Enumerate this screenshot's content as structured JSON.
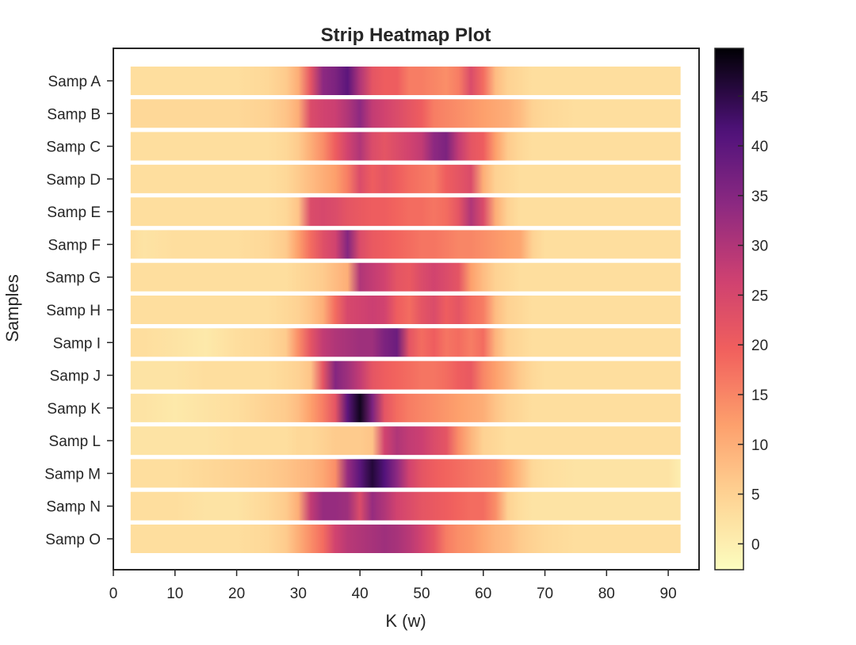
{
  "chart_data": {
    "type": "heatmap",
    "title": "Strip Heatmap Plot",
    "xlabel": "K (w)",
    "ylabel": "Samples",
    "xlim": [
      0,
      95
    ],
    "x_range": [
      2.8,
      92.0
    ],
    "xticks": [
      0,
      10,
      20,
      30,
      40,
      50,
      60,
      70,
      80,
      90
    ],
    "colorbar": {
      "colormap": "magma_r",
      "range": [
        -2.6,
        49.8
      ],
      "ticks": [
        0,
        5,
        10,
        15,
        20,
        25,
        30,
        35,
        40,
        45
      ]
    },
    "x_knots": [
      2.8,
      5,
      10,
      15,
      20,
      25,
      28,
      30,
      32,
      34,
      36,
      38,
      40,
      42,
      44,
      46,
      48,
      50,
      52,
      54,
      56,
      58,
      60,
      62,
      64,
      66,
      68,
      70,
      75,
      80,
      85,
      90,
      92
    ],
    "samples": [
      {
        "label": "Samp O",
        "values": [
          3,
          3,
          3,
          3,
          3,
          4,
          6,
          10,
          14,
          18,
          26,
          29,
          30,
          31,
          32,
          31,
          29,
          26,
          22,
          16,
          14,
          13,
          11,
          9,
          8,
          6,
          5,
          4,
          3,
          3,
          3,
          3,
          3
        ]
      },
      {
        "label": "Samp N",
        "values": [
          3,
          3,
          3,
          2,
          2,
          4,
          6,
          10,
          28,
          33,
          33,
          32,
          24,
          33,
          30,
          26,
          24,
          22,
          21,
          20,
          19,
          18,
          18,
          14,
          5,
          3,
          2,
          2,
          2,
          2,
          2,
          2,
          2
        ]
      },
      {
        "label": "Samp M",
        "values": [
          3,
          3,
          3,
          4,
          5,
          6,
          7,
          8,
          9,
          11,
          14,
          33,
          40,
          46,
          41,
          34,
          26,
          22,
          20,
          19,
          18,
          17,
          16,
          15,
          12,
          8,
          4,
          3,
          2,
          2,
          2,
          2,
          0
        ]
      },
      {
        "label": "Samp L",
        "values": [
          2,
          2,
          2,
          2,
          3,
          3,
          3,
          4,
          4,
          5,
          6,
          6,
          6,
          7,
          26,
          30,
          28,
          27,
          24,
          22,
          14,
          9,
          5,
          4,
          3,
          3,
          3,
          3,
          3,
          3,
          3,
          3,
          3
        ]
      },
      {
        "label": "Samp K",
        "values": [
          2,
          2,
          1,
          2,
          3,
          5,
          6,
          8,
          12,
          16,
          22,
          40,
          48,
          36,
          22,
          18,
          16,
          15,
          14,
          13,
          12,
          11,
          10,
          7,
          5,
          4,
          3,
          3,
          3,
          3,
          3,
          3,
          3
        ]
      },
      {
        "label": "Samp J",
        "values": [
          2,
          2,
          2,
          3,
          3,
          3,
          4,
          5,
          7,
          22,
          35,
          32,
          28,
          22,
          20,
          19,
          18,
          17,
          17,
          18,
          20,
          21,
          15,
          12,
          9,
          6,
          4,
          3,
          3,
          3,
          3,
          3,
          3
        ]
      },
      {
        "label": "Samp I",
        "values": [
          3,
          3,
          2,
          1,
          3,
          4,
          6,
          14,
          22,
          28,
          30,
          31,
          32,
          32,
          36,
          38,
          22,
          18,
          20,
          17,
          18,
          16,
          18,
          9,
          5,
          4,
          3,
          3,
          3,
          3,
          3,
          3,
          3
        ]
      },
      {
        "label": "Samp H",
        "values": [
          3,
          3,
          3,
          3,
          3,
          3,
          4,
          5,
          7,
          10,
          18,
          25,
          26,
          27,
          26,
          20,
          18,
          22,
          24,
          20,
          22,
          18,
          16,
          8,
          5,
          4,
          3,
          3,
          3,
          3,
          3,
          3,
          3
        ]
      },
      {
        "label": "Samp G",
        "values": [
          3,
          3,
          3,
          3,
          3,
          3,
          3,
          4,
          5,
          6,
          8,
          10,
          30,
          28,
          26,
          22,
          21,
          24,
          26,
          24,
          22,
          12,
          8,
          5,
          4,
          3,
          3,
          3,
          3,
          3,
          3,
          3,
          3
        ]
      },
      {
        "label": "Samp F",
        "values": [
          3,
          2,
          3,
          3,
          3,
          4,
          6,
          12,
          18,
          23,
          26,
          35,
          24,
          21,
          20,
          19,
          18,
          17,
          17,
          16,
          15,
          15,
          14,
          13,
          12,
          11,
          5,
          3,
          3,
          3,
          3,
          3,
          3
        ]
      },
      {
        "label": "Samp E",
        "values": [
          3,
          3,
          3,
          3,
          3,
          3,
          4,
          7,
          24,
          25,
          24,
          22,
          21,
          20,
          20,
          19,
          18,
          18,
          17,
          18,
          22,
          30,
          24,
          10,
          5,
          3,
          3,
          3,
          3,
          3,
          3,
          3,
          3
        ]
      },
      {
        "label": "Samp D",
        "values": [
          3,
          3,
          3,
          3,
          3,
          3,
          4,
          6,
          8,
          10,
          12,
          16,
          24,
          20,
          22,
          20,
          18,
          17,
          16,
          20,
          22,
          24,
          10,
          5,
          4,
          3,
          3,
          3,
          3,
          3,
          3,
          3,
          3
        ]
      },
      {
        "label": "Samp C",
        "values": [
          3,
          3,
          3,
          3,
          3,
          3,
          4,
          6,
          10,
          14,
          20,
          26,
          30,
          24,
          22,
          24,
          26,
          28,
          34,
          36,
          28,
          22,
          20,
          12,
          6,
          4,
          3,
          3,
          3,
          3,
          3,
          3,
          3
        ]
      },
      {
        "label": "Samp B",
        "values": [
          4,
          4,
          4,
          4,
          4,
          5,
          7,
          10,
          24,
          26,
          27,
          30,
          34,
          28,
          26,
          24,
          22,
          20,
          16,
          15,
          14,
          13,
          12,
          11,
          10,
          8,
          5,
          4,
          3,
          3,
          3,
          3,
          3
        ]
      },
      {
        "label": "Samp A",
        "values": [
          3,
          3,
          3,
          3,
          3,
          4,
          6,
          10,
          22,
          34,
          36,
          40,
          30,
          22,
          20,
          20,
          16,
          16,
          15,
          14,
          16,
          24,
          18,
          8,
          5,
          4,
          3,
          3,
          3,
          3,
          3,
          3,
          3
        ]
      }
    ]
  }
}
